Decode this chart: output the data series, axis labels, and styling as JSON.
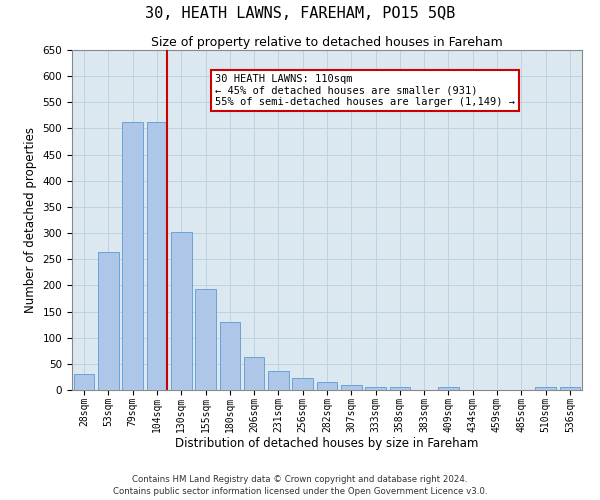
{
  "title": "30, HEATH LAWNS, FAREHAM, PO15 5QB",
  "subtitle": "Size of property relative to detached houses in Fareham",
  "xlabel": "Distribution of detached houses by size in Fareham",
  "ylabel": "Number of detached properties",
  "bin_labels": [
    "28sqm",
    "53sqm",
    "79sqm",
    "104sqm",
    "130sqm",
    "155sqm",
    "180sqm",
    "206sqm",
    "231sqm",
    "256sqm",
    "282sqm",
    "307sqm",
    "333sqm",
    "358sqm",
    "383sqm",
    "409sqm",
    "434sqm",
    "459sqm",
    "485sqm",
    "510sqm",
    "536sqm"
  ],
  "bar_heights": [
    30,
    263,
    513,
    513,
    302,
    194,
    130,
    64,
    37,
    22,
    15,
    10,
    6,
    5,
    0,
    5,
    0,
    0,
    0,
    5,
    5
  ],
  "bar_color": "#aec6e8",
  "bar_edge_color": "#5b9bd5",
  "vline_x": 3.4,
  "vline_color": "#cc0000",
  "annotation_text": "30 HEATH LAWNS: 110sqm\n← 45% of detached houses are smaller (931)\n55% of semi-detached houses are larger (1,149) →",
  "ann_box_color": "#cc0000",
  "ylim": [
    0,
    650
  ],
  "yticks": [
    0,
    50,
    100,
    150,
    200,
    250,
    300,
    350,
    400,
    450,
    500,
    550,
    600,
    650
  ],
  "grid_color": "#b8cfe0",
  "bg_color": "#dce8f0",
  "footer1": "Contains HM Land Registry data © Crown copyright and database right 2024.",
  "footer2": "Contains public sector information licensed under the Open Government Licence v3.0."
}
